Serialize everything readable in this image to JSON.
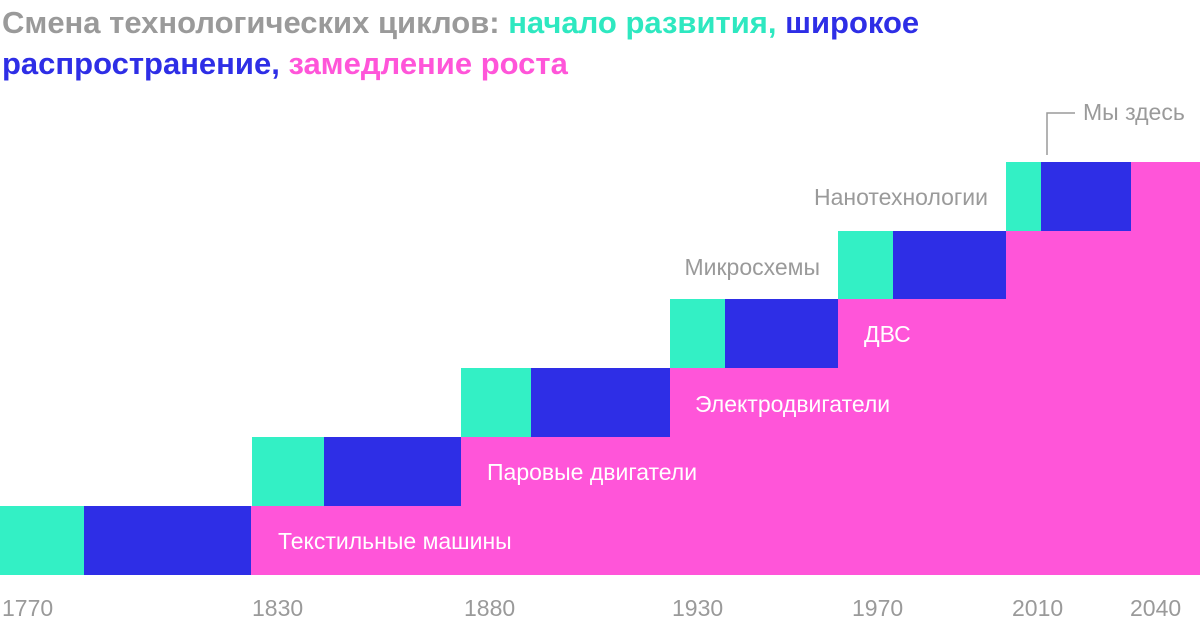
{
  "header": {
    "title_parts": [
      "Смена технологических циклов:",
      "начало развития,",
      "широкое",
      "распространение,",
      "замедление роста"
    ]
  },
  "cycles": [
    "Текстильные машины",
    "Паровые двигатели",
    "Электродвигатели",
    "ДВС",
    "Микросхемы",
    "Нанотехнологии"
  ],
  "annotation": "Мы здесь",
  "axis_labels": [
    1770,
    1830,
    1880,
    1930,
    1970,
    2010,
    2040
  ]
}
